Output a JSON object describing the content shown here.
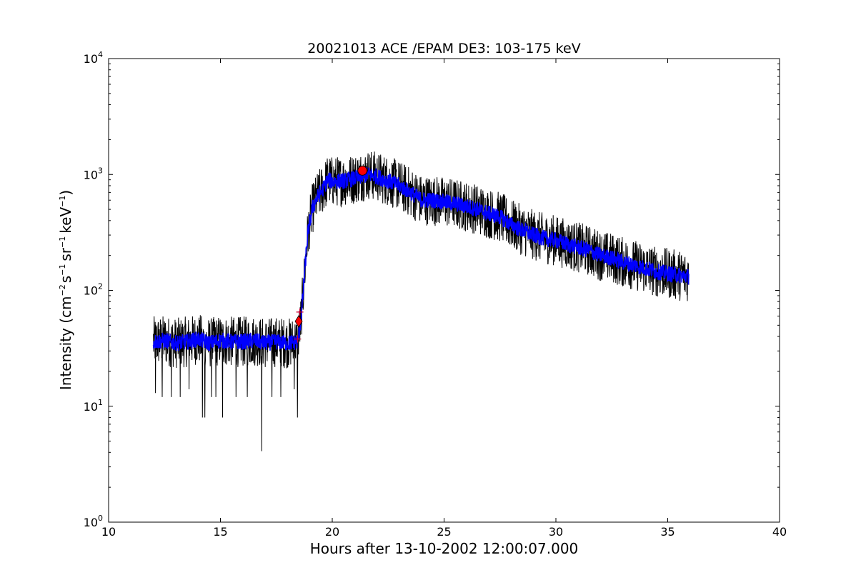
{
  "chart_data": {
    "type": "line",
    "title": "20021013 ACE /EPAM DE3: 103-175 keV",
    "xlabel": "Hours after 13-10-2002 12:00:07.000",
    "ylabel": {
      "prefix": "Intensity (cm",
      "exp1": "−2",
      "mid1": "s",
      "exp2": "−1",
      "mid2": "sr",
      "exp3": "−1",
      "mid3": "keV",
      "exp4": "−1",
      "suffix": ")"
    },
    "xlim": [
      10,
      40
    ],
    "ylim": [
      1,
      10000
    ],
    "yscale": "log",
    "x_ticks": [
      10,
      15,
      20,
      25,
      30,
      35,
      40
    ],
    "x_tick_labels": [
      "10",
      "15",
      "20",
      "25",
      "30",
      "35",
      "40"
    ],
    "y_ticks": [
      1,
      10,
      100,
      1000,
      10000
    ],
    "y_tick_base": "10",
    "y_tick_exponents": [
      "0",
      "1",
      "2",
      "3",
      "4"
    ],
    "grid": false,
    "series": [
      {
        "color": "#000000",
        "kind": "raw",
        "x": [
          12.0,
          12.5,
          13.0,
          13.5,
          14.0,
          14.5,
          15.0,
          15.5,
          16.0,
          16.5,
          17.0,
          17.5,
          18.0,
          18.45,
          18.6,
          18.75,
          18.9,
          19.1,
          19.3,
          19.6,
          19.8,
          20.0,
          20.5,
          21.0,
          21.3,
          21.6,
          22.0,
          22.5,
          23.0,
          23.5,
          24.0,
          24.5,
          25.0,
          25.5,
          26.0,
          26.5,
          27.0,
          27.5,
          28.0,
          28.5,
          29.0,
          29.5,
          30.0,
          30.5,
          31.0,
          31.5,
          32.0,
          32.5,
          33.0,
          33.5,
          34.0,
          34.5,
          35.0,
          35.5,
          35.95
        ],
        "y": [
          36,
          37,
          35,
          36,
          38,
          35,
          37,
          36,
          36,
          37,
          35,
          36,
          35,
          36,
          55,
          130,
          300,
          500,
          620,
          760,
          900,
          870,
          880,
          920,
          960,
          1000,
          960,
          880,
          800,
          700,
          600,
          600,
          580,
          560,
          530,
          500,
          460,
          430,
          370,
          330,
          300,
          280,
          270,
          250,
          235,
          220,
          200,
          190,
          175,
          165,
          155,
          145,
          140,
          135,
          132
        ],
        "noise_db": 0.22,
        "dropout_x": [
          12.1,
          12.4,
          12.8,
          13.2,
          13.6,
          14.2,
          14.3,
          14.6,
          14.8,
          15.1,
          15.7,
          16.2,
          16.85,
          17.3,
          17.7,
          18.3,
          18.45
        ],
        "dropout_y": [
          13,
          12,
          12,
          12,
          14,
          8,
          8,
          12,
          12,
          8,
          12,
          12,
          4.1,
          12,
          12,
          14,
          8
        ]
      },
      {
        "color": "#0000ff",
        "kind": "smoothed",
        "x": [
          12.0,
          12.5,
          13.0,
          13.5,
          14.0,
          14.5,
          15.0,
          15.5,
          16.0,
          16.5,
          17.0,
          17.5,
          18.0,
          18.45,
          18.6,
          18.75,
          18.9,
          19.1,
          19.3,
          19.6,
          19.8,
          20.0,
          20.5,
          21.0,
          21.3,
          21.6,
          22.0,
          22.5,
          23.0,
          23.5,
          24.0,
          24.5,
          25.0,
          25.5,
          26.0,
          26.5,
          27.0,
          27.5,
          28.0,
          28.5,
          29.0,
          29.5,
          30.0,
          30.5,
          31.0,
          31.5,
          32.0,
          32.5,
          33.0,
          33.5,
          34.0,
          34.5,
          35.0,
          35.5,
          35.95
        ],
        "y": [
          36,
          37,
          35,
          36,
          38,
          35,
          37,
          36,
          36,
          37,
          35,
          36,
          35,
          36,
          55,
          130,
          300,
          500,
          620,
          760,
          900,
          870,
          880,
          920,
          960,
          1000,
          960,
          880,
          800,
          700,
          600,
          600,
          580,
          560,
          530,
          500,
          460,
          430,
          370,
          330,
          300,
          280,
          270,
          250,
          235,
          220,
          200,
          190,
          175,
          165,
          155,
          145,
          140,
          135,
          132
        ],
        "noise_db": 0.07
      }
    ],
    "markers": [
      {
        "shape": "circle",
        "x": 21.35,
        "y": 1080,
        "color": "#ff0000"
      },
      {
        "shape": "diamond",
        "x": 18.5,
        "y": 54,
        "color": "#ff0000"
      },
      {
        "shape": "plus",
        "x": 18.55,
        "y": 65,
        "color": "#cc0033"
      },
      {
        "shape": "plus",
        "x": 18.45,
        "y": 38,
        "color": "#cc0033"
      }
    ]
  }
}
